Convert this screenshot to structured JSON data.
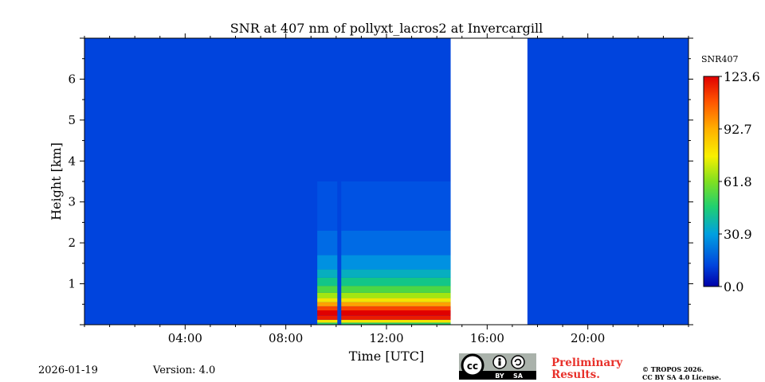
{
  "chart_data": {
    "type": "heatmap",
    "title": "SNR at 407 nm of pollyxt_lacros2 at Invercargill",
    "xlabel": "Time [UTC]",
    "ylabel": "Height [km]",
    "xlim_hours": [
      0,
      24
    ],
    "ylim_km": [
      0,
      7
    ],
    "x_ticks": [
      {
        "hour": 4,
        "label": "04:00"
      },
      {
        "hour": 8,
        "label": "08:00"
      },
      {
        "hour": 12,
        "label": "12:00"
      },
      {
        "hour": 16,
        "label": "16:00"
      },
      {
        "hour": 20,
        "label": "20:00"
      }
    ],
    "y_ticks": [
      {
        "km": 1,
        "label": "1"
      },
      {
        "km": 2,
        "label": "2"
      },
      {
        "km": 3,
        "label": "3"
      },
      {
        "km": 4,
        "label": "4"
      },
      {
        "km": 5,
        "label": "5"
      },
      {
        "km": 6,
        "label": "6"
      }
    ],
    "background_snr": 0,
    "no_data_interval_hours": [
      14.55,
      17.6
    ],
    "signal_gap_hours": [
      10.05,
      10.2
    ],
    "measurement_interval_hours": [
      9.25,
      14.55
    ],
    "profile_bands": [
      {
        "from_km": 0.0,
        "to_km": 0.05,
        "snr": 45
      },
      {
        "from_km": 0.05,
        "to_km": 0.12,
        "snr": 75
      },
      {
        "from_km": 0.12,
        "to_km": 0.22,
        "snr": 118
      },
      {
        "from_km": 0.22,
        "to_km": 0.35,
        "snr": 123.6
      },
      {
        "from_km": 0.35,
        "to_km": 0.45,
        "snr": 110
      },
      {
        "from_km": 0.45,
        "to_km": 0.55,
        "snr": 92
      },
      {
        "from_km": 0.55,
        "to_km": 0.65,
        "snr": 75
      },
      {
        "from_km": 0.65,
        "to_km": 0.78,
        "snr": 62
      },
      {
        "from_km": 0.78,
        "to_km": 0.95,
        "snr": 50
      },
      {
        "from_km": 0.95,
        "to_km": 1.15,
        "snr": 40
      },
      {
        "from_km": 1.15,
        "to_km": 1.35,
        "snr": 32
      },
      {
        "from_km": 1.35,
        "to_km": 1.7,
        "snr": 24
      },
      {
        "from_km": 1.7,
        "to_km": 2.3,
        "snr": 16
      },
      {
        "from_km": 2.3,
        "to_km": 3.5,
        "snr": 8
      }
    ],
    "colorbar": {
      "label": "SNR407",
      "min": 0.0,
      "max": 123.6,
      "ticks": [
        "0.0",
        "30.9",
        "61.8",
        "92.7",
        "123.6"
      ],
      "tick_values": [
        0.0,
        30.9,
        61.8,
        92.7,
        123.6
      ]
    }
  },
  "footer": {
    "date": "2026-01-19",
    "version": "Version: 4.0",
    "preliminary_line1": "Preliminary",
    "preliminary_line2": "Results.",
    "copyright_line1": "© TROPOS 2026.",
    "copyright_line2": "CC BY SA 4.0 License."
  },
  "license_badge": {
    "cc": "cc",
    "by": "BY",
    "sa": "SA"
  }
}
